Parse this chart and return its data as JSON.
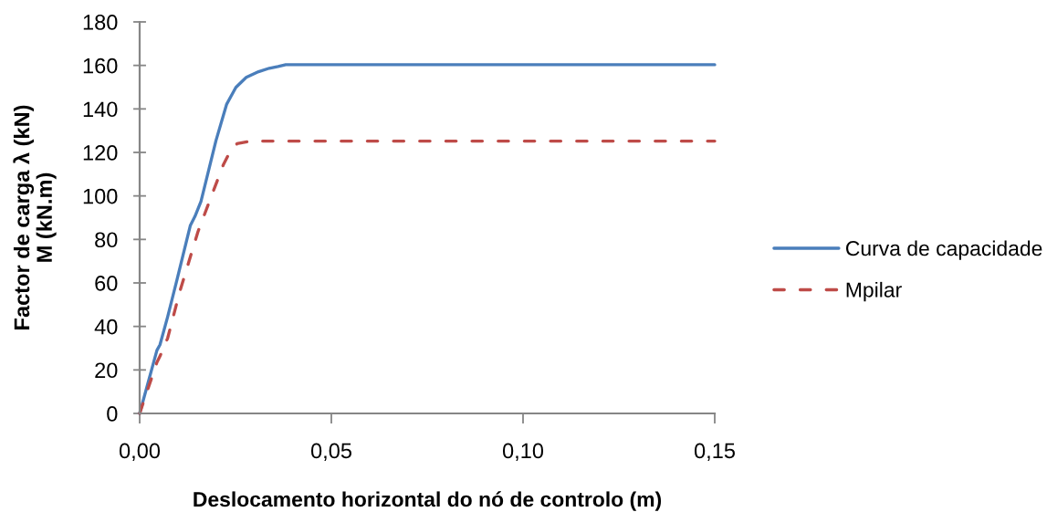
{
  "chart_data": {
    "type": "line",
    "xlabel": "Deslocamento horizontal do nó de controlo (m)",
    "ylabel": "Factor de carga λ (kN)\nM (kN.m)",
    "xlim": [
      0,
      0.15
    ],
    "ylim": [
      0,
      180
    ],
    "xticks": [
      {
        "value": 0,
        "label": "0,00"
      },
      {
        "value": 0.05,
        "label": "0,05"
      },
      {
        "value": 0.1,
        "label": "0,10"
      },
      {
        "value": 0.15,
        "label": "0,15"
      }
    ],
    "yticks": [
      0,
      20,
      40,
      60,
      80,
      100,
      120,
      140,
      160,
      180
    ],
    "grid": false,
    "legend": "right",
    "marker": "none",
    "series": [
      {
        "name": "Curva de capacidade",
        "color": "#4a7ebb",
        "line_style": "solid",
        "x": [
          0,
          0.0045,
          0.0053,
          0.0073,
          0.0097,
          0.0132,
          0.0144,
          0.016,
          0.0199,
          0.0227,
          0.0251,
          0.0278,
          0.031,
          0.0338,
          0.0361,
          0.0381,
          0.15
        ],
        "values": [
          0,
          29,
          31.6,
          44.4,
          61.2,
          86.3,
          90.5,
          97.5,
          125.4,
          142.2,
          149.9,
          154.5,
          157.1,
          158.7,
          159.5,
          160.3,
          160.3
        ]
      },
      {
        "name": "Mpilar",
        "color": "#be4b48",
        "line_style": "dashed",
        "x": [
          0,
          0.0045,
          0.0053,
          0.0073,
          0.0104,
          0.0152,
          0.0191,
          0.0218,
          0.0238,
          0.0254,
          0.029,
          0.15
        ],
        "values": [
          0,
          23.5,
          26.3,
          34.6,
          55.6,
          83.5,
          101.7,
          114.2,
          121.2,
          124.0,
          125.2,
          125.2
        ]
      }
    ]
  }
}
